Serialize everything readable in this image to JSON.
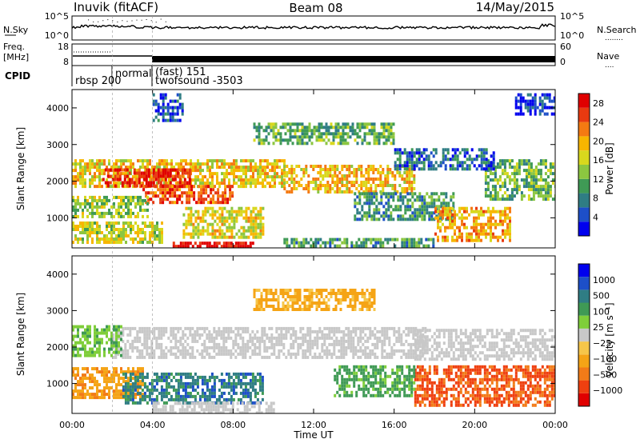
{
  "header": {
    "station": "Inuvik (fitACF)",
    "beam": "Beam 08",
    "date": "14/May/2015"
  },
  "top_panels": {
    "noise": {
      "left_label": "N.Sky",
      "left_ticks": [
        "10^5",
        "10^0"
      ],
      "right_ticks": [
        "10^5",
        "10^0"
      ],
      "right_label": "N.Search",
      "right_legend_dots": "........"
    },
    "frequency": {
      "left_label_line1": "Freq.",
      "left_label_line2": "[MHz]",
      "left_ticks": [
        "18",
        "8"
      ],
      "right_ticks": [
        "60",
        "0"
      ],
      "right_label": "Nave",
      "right_legend_dots": "...."
    },
    "cpid": {
      "label": "CPID",
      "segments": [
        {
          "text": "rbsp 200",
          "start_h": 0
        },
        {
          "text": "normal",
          "start_h": 2
        },
        {
          "text": "(fast) 151",
          "start_h": 4
        },
        {
          "text": "twofsound -3503",
          "start_h": 4
        }
      ]
    }
  },
  "colors": {
    "power_scale": [
      "#0000ee",
      "#1d4fc8",
      "#2f7d84",
      "#3f9a55",
      "#8cc640",
      "#d8d81d",
      "#f7b600",
      "#f47a12",
      "#e83a10",
      "#e00000"
    ],
    "velocity_scale": [
      "#e00000",
      "#ef4010",
      "#f27b18",
      "#f5a416",
      "#f6c64a",
      "#c8c8c8",
      "#7fce3a",
      "#3f9a55",
      "#2f7d84",
      "#1d4fc8",
      "#0000ee"
    ],
    "ground_scatter": "#c0c0c0"
  },
  "chart_data": [
    {
      "type": "heatmap",
      "name": "power",
      "xlabel": "Time UT",
      "ylabel": "Slant Range [km]",
      "xlim_hours": [
        0,
        24
      ],
      "ylim": [
        180,
        4500
      ],
      "y_ticks": [
        "1000",
        "2000",
        "3000",
        "4000"
      ],
      "colorbar": {
        "label": "Power [dB]",
        "ticks": [
          "4",
          "8",
          "12",
          "16",
          "20",
          "24",
          "28"
        ],
        "range": [
          0,
          30
        ]
      },
      "regions": [
        {
          "t0": 0,
          "t1": 10.5,
          "r0": 1850,
          "r1": 2600,
          "level": 18
        },
        {
          "t0": 10.5,
          "t1": 17,
          "r0": 1750,
          "r1": 2450,
          "level": 19
        },
        {
          "t0": 1.5,
          "t1": 5.8,
          "r0": 1900,
          "r1": 2350,
          "level": 27
        },
        {
          "t0": 3.5,
          "t1": 8,
          "r0": 1450,
          "r1": 1900,
          "level": 25
        },
        {
          "t0": 0,
          "t1": 3.8,
          "r0": 1000,
          "r1": 1600,
          "level": 14
        },
        {
          "t0": 0,
          "t1": 4.5,
          "r0": 300,
          "r1": 900,
          "level": 16
        },
        {
          "t0": 5.5,
          "t1": 9.5,
          "r0": 500,
          "r1": 1300,
          "level": 17
        },
        {
          "t0": 5.0,
          "t1": 9.0,
          "r0": 180,
          "r1": 350,
          "level": 29
        },
        {
          "t0": 10.5,
          "t1": 18,
          "r0": 180,
          "r1": 450,
          "level": 10
        },
        {
          "t0": 14,
          "t1": 19,
          "r0": 1000,
          "r1": 1700,
          "level": 9
        },
        {
          "t0": 18,
          "t1": 21.8,
          "r0": 400,
          "r1": 1300,
          "level": 20
        },
        {
          "t0": 20.5,
          "t1": 24,
          "r0": 1500,
          "r1": 2600,
          "level": 12
        },
        {
          "t0": 4,
          "t1": 5.5,
          "r0": 3700,
          "r1": 4400,
          "level": 5
        },
        {
          "t0": 9,
          "t1": 16,
          "r0": 3000,
          "r1": 3600,
          "level": 11
        },
        {
          "t0": 16,
          "t1": 21,
          "r0": 2300,
          "r1": 2900,
          "level": 6
        },
        {
          "t0": 22,
          "t1": 24,
          "r0": 3800,
          "r1": 4400,
          "level": 4
        }
      ]
    },
    {
      "type": "heatmap",
      "name": "velocity",
      "xlabel": "Time UT",
      "ylabel": "Slant Range [km]",
      "xlim_hours": [
        0,
        24
      ],
      "ylim": [
        180,
        4500
      ],
      "y_ticks": [
        "1000",
        "2000",
        "3000",
        "4000"
      ],
      "x_ticks": [
        "00:00",
        "04:00",
        "08:00",
        "12:00",
        "16:00",
        "20:00",
        "00:00"
      ],
      "colorbar": {
        "label": "Velocity [m s⁻¹]",
        "ticks": [
          "1000",
          "500",
          "100",
          "25",
          "−25",
          "−100",
          "−500",
          "−1000"
        ]
      },
      "regions": [
        {
          "t0": 2,
          "t1": 17.5,
          "r0": 1700,
          "r1": 2550,
          "v": 0
        },
        {
          "t0": 0,
          "t1": 2.5,
          "r0": 1750,
          "r1": 2600,
          "v": 80
        },
        {
          "t0": 17,
          "t1": 24,
          "r0": 1700,
          "r1": 2500,
          "v": 0
        },
        {
          "t0": 0,
          "t1": 3.5,
          "r0": 600,
          "r1": 1450,
          "v": -200
        },
        {
          "t0": 2.5,
          "t1": 9.5,
          "r0": 500,
          "r1": 1300,
          "v": 400
        },
        {
          "t0": 4,
          "t1": 10,
          "r0": 180,
          "r1": 500,
          "v": 0
        },
        {
          "t0": 17,
          "t1": 24,
          "r0": 400,
          "r1": 1500,
          "v": -550
        },
        {
          "t0": 13,
          "t1": 17,
          "r0": 700,
          "r1": 1500,
          "v": 150
        },
        {
          "t0": 9,
          "t1": 15,
          "r0": 3000,
          "r1": 3600,
          "v": -150
        }
      ]
    }
  ]
}
